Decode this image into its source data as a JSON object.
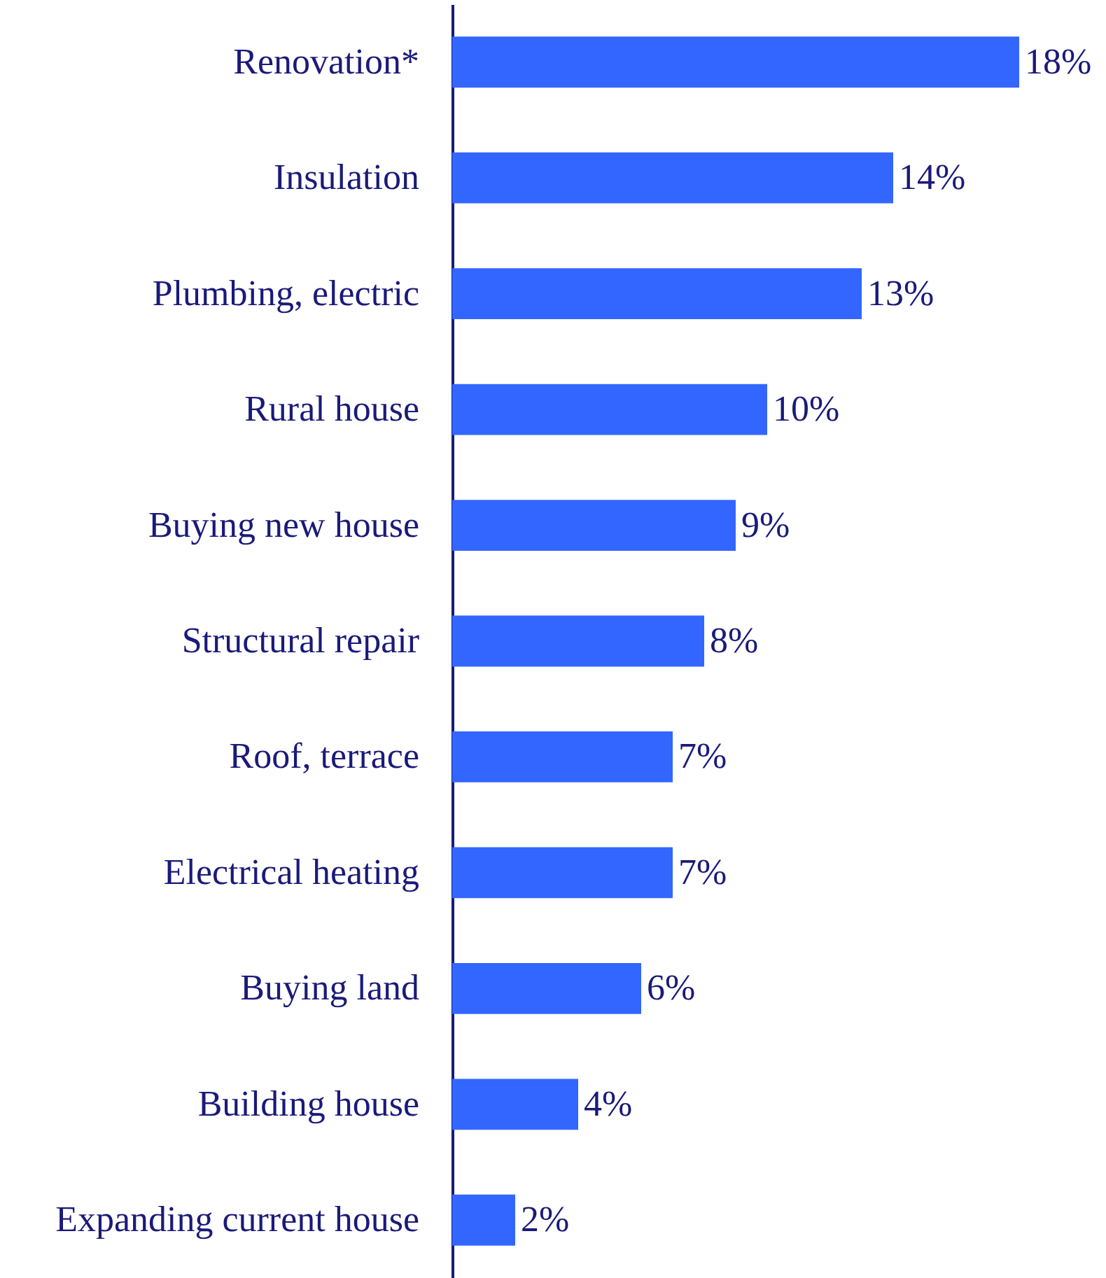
{
  "chart_data": {
    "type": "bar",
    "orientation": "horizontal",
    "categories": [
      "Renovation*",
      "Insulation",
      "Plumbing, electric",
      "Rural house",
      "Buying new house",
      "Structural repair",
      "Roof, terrace",
      "Electrical heating",
      "Buying land",
      "Building house",
      "Expanding current house"
    ],
    "values": [
      18,
      14,
      13,
      10,
      9,
      8,
      7,
      7,
      6,
      4,
      2
    ],
    "value_labels": [
      "18%",
      "14%",
      "13%",
      "10%",
      "9%",
      "8%",
      "7%",
      "7%",
      "6%",
      "4%",
      "2%"
    ],
    "color": "#3366ff"
  }
}
